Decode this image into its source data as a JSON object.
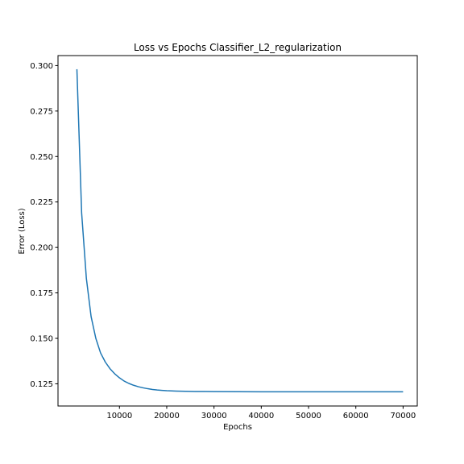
{
  "chart_data": {
    "type": "line",
    "title": "Loss vs Epochs Classifier_L2_regularization",
    "xlabel": "Epochs",
    "ylabel": "Error (Loss)",
    "xlim": [
      -3000,
      73000
    ],
    "ylim": [
      0.1128,
      0.3055
    ],
    "grid": false,
    "x_ticks": [
      10000,
      20000,
      30000,
      40000,
      50000,
      60000,
      70000
    ],
    "y_ticks": [
      0.125,
      0.15,
      0.175,
      0.2,
      0.225,
      0.25,
      0.275,
      0.3
    ],
    "y_tick_labels": [
      "0.125",
      "0.150",
      "0.175",
      "0.200",
      "0.225",
      "0.250",
      "0.275",
      "0.300"
    ],
    "series": [
      {
        "color": "#1f77b4",
        "x": [
          1000,
          2000,
          3000,
          4000,
          5000,
          6000,
          7000,
          8000,
          9000,
          10000,
          11000,
          12000,
          13000,
          14000,
          15000,
          16000,
          17000,
          18000,
          19000,
          20000,
          22000,
          24000,
          26000,
          28000,
          30000,
          35000,
          40000,
          45000,
          50000,
          55000,
          60000,
          65000,
          70000
        ],
        "y": [
          0.298,
          0.219,
          0.183,
          0.162,
          0.15,
          0.142,
          0.137,
          0.1333,
          0.1305,
          0.1283,
          0.1265,
          0.1252,
          0.1242,
          0.1234,
          0.1228,
          0.1223,
          0.1219,
          0.1216,
          0.1214,
          0.1212,
          0.121,
          0.1209,
          0.1208,
          0.12075,
          0.1207,
          0.12065,
          0.1206,
          0.1206,
          0.1206,
          0.1206,
          0.1206,
          0.1206,
          0.1206
        ]
      }
    ]
  }
}
